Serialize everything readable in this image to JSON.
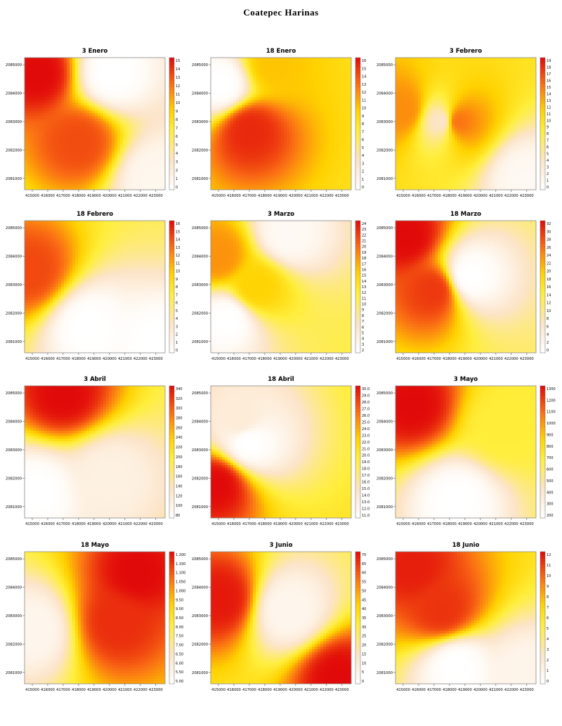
{
  "title": "Coatepec Harinas",
  "chart_data": [
    {
      "type": "heatmap",
      "title": "3 Enero",
      "x_ticks": [
        "415000",
        "416000",
        "417000",
        "418000",
        "419000",
        "420000",
        "421000",
        "422000",
        "423000"
      ],
      "y_ticks": [
        "2085000",
        "2084000",
        "2083000",
        "2082000",
        "2081000"
      ],
      "colorbar": [
        "15",
        "14",
        "13",
        "12",
        "11",
        "10",
        "9",
        "8",
        "7",
        "6",
        "5",
        "4",
        "3",
        "2",
        "1",
        "0"
      ],
      "vmin": 0,
      "vmax": 15,
      "base": 5,
      "hotspots": [
        {
          "x": 415400,
          "y": 2084700,
          "v": 15
        },
        {
          "x": 418000,
          "y": 2082300,
          "v": 13
        },
        {
          "x": 420200,
          "y": 2084700,
          "v": 0
        },
        {
          "x": 423000,
          "y": 2081000,
          "v": 1
        }
      ]
    },
    {
      "type": "heatmap",
      "title": "18 Enero",
      "x_ticks": [
        "415000",
        "416000",
        "417000",
        "418000",
        "419000",
        "420000",
        "421000",
        "422000",
        "423000"
      ],
      "y_ticks": [
        "2085000",
        "2084000",
        "2083000",
        "2082000",
        "2081000"
      ],
      "colorbar": [
        "16",
        "15",
        "14",
        "13",
        "12",
        "11",
        "10",
        "9",
        "8",
        "7",
        "6",
        "5",
        "4",
        "3",
        "2",
        "1",
        "0"
      ],
      "vmin": 0,
      "vmax": 16,
      "base": 8,
      "hotspots": [
        {
          "x": 417000,
          "y": 2082700,
          "v": 15
        },
        {
          "x": 415200,
          "y": 2084300,
          "v": 0
        },
        {
          "x": 418500,
          "y": 2085000,
          "v": 10
        }
      ]
    },
    {
      "type": "heatmap",
      "title": "3 Febrero",
      "x_ticks": [
        "415000",
        "416000",
        "417000",
        "418000",
        "419000",
        "420000",
        "421000",
        "422000",
        "423000"
      ],
      "y_ticks": [
        "2085000",
        "2084000",
        "2083000",
        "2082000",
        "2081000"
      ],
      "colorbar": [
        "19",
        "18",
        "17",
        "16",
        "15",
        "14",
        "13",
        "12",
        "11",
        "10",
        "9",
        "8",
        "7",
        "6",
        "5",
        "4",
        "3",
        "2",
        "1",
        "0"
      ],
      "vmin": 0,
      "vmax": 19,
      "base": 10,
      "hotspots": [
        {
          "x": 417500,
          "y": 2083000,
          "v": 4
        },
        {
          "x": 418500,
          "y": 2083000,
          "v": 15
        },
        {
          "x": 423000,
          "y": 2081000,
          "v": 1
        },
        {
          "x": 415000,
          "y": 2083400,
          "v": 14
        }
      ]
    },
    {
      "type": "heatmap",
      "title": "18 Febrero",
      "x_ticks": [
        "415000",
        "416000",
        "417000",
        "418000",
        "419000",
        "420000",
        "421000",
        "422000",
        "423000"
      ],
      "y_ticks": [
        "2085000",
        "2084000",
        "2083000",
        "2082000",
        "2081000"
      ],
      "colorbar": [
        "16",
        "15",
        "14",
        "13",
        "12",
        "11",
        "10",
        "9",
        "8",
        "7",
        "6",
        "5",
        "4",
        "3",
        "2",
        "1",
        "0"
      ],
      "vmin": 0,
      "vmax": 16,
      "base": 7,
      "hotspots": [
        {
          "x": 418700,
          "y": 2081500,
          "v": 0
        },
        {
          "x": 414800,
          "y": 2083500,
          "v": 14
        },
        {
          "x": 423000,
          "y": 2081000,
          "v": 0
        }
      ]
    },
    {
      "type": "heatmap",
      "title": "3 Marzo",
      "x_ticks": [
        "415000",
        "416000",
        "417000",
        "418000",
        "419000",
        "420000",
        "421000",
        "422000",
        "423000"
      ],
      "y_ticks": [
        "2085000",
        "2084000",
        "2083000",
        "2082000",
        "2081000"
      ],
      "colorbar": [
        "24",
        "23",
        "22",
        "21",
        "20",
        "19",
        "18",
        "17",
        "16",
        "15",
        "14",
        "13",
        "12",
        "11",
        "10",
        "9",
        "8",
        "7",
        "6",
        "5",
        "4",
        "3",
        "2"
      ],
      "vmin": 2,
      "vmax": 24,
      "base": 12,
      "hotspots": [
        {
          "x": 415600,
          "y": 2081800,
          "v": 2
        },
        {
          "x": 419500,
          "y": 2084800,
          "v": 3
        },
        {
          "x": 415000,
          "y": 2084000,
          "v": 18
        },
        {
          "x": 417400,
          "y": 2082900,
          "v": 15
        }
      ]
    },
    {
      "type": "heatmap",
      "title": "18 Marzo",
      "x_ticks": [
        "415000",
        "416000",
        "417000",
        "418000",
        "419000",
        "420000",
        "421000",
        "422000",
        "423000"
      ],
      "y_ticks": [
        "2085000",
        "2084000",
        "2083000",
        "2082000",
        "2081000"
      ],
      "colorbar": [
        "32",
        "30",
        "28",
        "26",
        "24",
        "22",
        "20",
        "18",
        "16",
        "14",
        "12",
        "10",
        "8",
        "6",
        "4",
        "2",
        "0"
      ],
      "vmin": 0,
      "vmax": 32,
      "base": 12,
      "hotspots": [
        {
          "x": 415200,
          "y": 2084700,
          "v": 32
        },
        {
          "x": 417000,
          "y": 2082800,
          "v": 29
        },
        {
          "x": 419300,
          "y": 2083300,
          "v": 0
        }
      ]
    },
    {
      "type": "heatmap",
      "title": "3 Abril",
      "x_ticks": [
        "415000",
        "416000",
        "417000",
        "418000",
        "419000",
        "420000",
        "421000",
        "422000",
        "423000"
      ],
      "y_ticks": [
        "2085000",
        "2084000",
        "2083000",
        "2082000",
        "2081000"
      ],
      "colorbar": [
        "340",
        "320",
        "300",
        "280",
        "260",
        "240",
        "220",
        "200",
        "180",
        "160",
        "140",
        "120",
        "100",
        "80"
      ],
      "vmin": 80,
      "vmax": 340,
      "base": 180,
      "hotspots": [
        {
          "x": 417000,
          "y": 2085000,
          "v": 340
        },
        {
          "x": 415300,
          "y": 2081500,
          "v": 80
        },
        {
          "x": 420000,
          "y": 2082000,
          "v": 110
        }
      ]
    },
    {
      "type": "heatmap",
      "title": "18 Abril",
      "x_ticks": [
        "415000",
        "416000",
        "417000",
        "418000",
        "419000",
        "420000",
        "421000",
        "422000",
        "423000"
      ],
      "y_ticks": [
        "2085000",
        "2084000",
        "2083000",
        "2082000",
        "2081000"
      ],
      "colorbar": [
        "30.0",
        "29.0",
        "28.0",
        "27.0",
        "26.0",
        "25.0",
        "24.0",
        "23.0",
        "22.0",
        "21.0",
        "20.0",
        "19.0",
        "18.0",
        "17.0",
        "16.0",
        "15.0",
        "14.0",
        "13.0",
        "12.0",
        "11.0"
      ],
      "vmin": 11,
      "vmax": 30,
      "base": 21,
      "hotspots": [
        {
          "x": 414900,
          "y": 2081800,
          "v": 30
        },
        {
          "x": 417000,
          "y": 2083300,
          "v": 11
        },
        {
          "x": 416500,
          "y": 2084000,
          "v": 14
        }
      ]
    },
    {
      "type": "heatmap",
      "title": "3 Mayo",
      "x_ticks": [
        "415000",
        "416000",
        "417000",
        "418000",
        "419000",
        "420000",
        "421000",
        "422000",
        "423000"
      ],
      "y_ticks": [
        "2085000",
        "2084000",
        "2083000",
        "2082000",
        "2081000"
      ],
      "colorbar": [
        "1300",
        "1200",
        "1100",
        "1000",
        "900",
        "800",
        "700",
        "600",
        "500",
        "400",
        "300",
        "200"
      ],
      "vmin": 200,
      "vmax": 1300,
      "base": 700,
      "hotspots": [
        {
          "x": 415600,
          "y": 2084600,
          "v": 1300
        },
        {
          "x": 418500,
          "y": 2081200,
          "v": 200
        },
        {
          "x": 421500,
          "y": 2083800,
          "v": 700
        }
      ]
    },
    {
      "type": "heatmap",
      "title": "18 Mayo",
      "x_ticks": [
        "415000",
        "416000",
        "417000",
        "418000",
        "419000",
        "420000",
        "421000",
        "422000",
        "423000"
      ],
      "y_ticks": [
        "2085000",
        "2084000",
        "2083000",
        "2082000",
        "2081000"
      ],
      "colorbar": [
        "1.200",
        "1.150",
        "1.100",
        "1.050",
        "1.000",
        "9.50",
        "9.00",
        "8.50",
        "8.00",
        "7.50",
        "7.00",
        "6.50",
        "6.00",
        "5.50",
        "5.00"
      ],
      "vmin": 5.0,
      "vmax": 12.0,
      "base": 8.5,
      "hotspots": [
        {
          "x": 421800,
          "y": 2084500,
          "v": 12
        },
        {
          "x": 420500,
          "y": 2082800,
          "v": 11.5
        },
        {
          "x": 415000,
          "y": 2082500,
          "v": 5.5
        }
      ]
    },
    {
      "type": "heatmap",
      "title": "3 Junio",
      "x_ticks": [
        "415000",
        "416000",
        "417000",
        "418000",
        "419000",
        "420000",
        "421000",
        "422000",
        "423000"
      ],
      "y_ticks": [
        "2085000",
        "2084000",
        "2083000",
        "2082000",
        "2081000"
      ],
      "colorbar": [
        "70",
        "65",
        "60",
        "55",
        "50",
        "45",
        "40",
        "35",
        "30",
        "25",
        "20",
        "15",
        "10",
        "5",
        "0"
      ],
      "vmin": 0,
      "vmax": 70,
      "base": 30,
      "hotspots": [
        {
          "x": 415200,
          "y": 2083600,
          "v": 68
        },
        {
          "x": 422800,
          "y": 2080800,
          "v": 70
        },
        {
          "x": 419500,
          "y": 2083200,
          "v": 5
        }
      ]
    },
    {
      "type": "heatmap",
      "title": "18 Junio",
      "x_ticks": [
        "415000",
        "416000",
        "417000",
        "418000",
        "419000",
        "420000",
        "421000",
        "422000",
        "423000"
      ],
      "y_ticks": [
        "2085000",
        "2084000",
        "2083000",
        "2082000",
        "2081000"
      ],
      "colorbar": [
        "12",
        "11",
        "10",
        "9",
        "8",
        "7",
        "6",
        "5",
        "4",
        "3",
        "2",
        "1",
        "0"
      ],
      "vmin": 0,
      "vmax": 12,
      "base": 6,
      "hotspots": [
        {
          "x": 415600,
          "y": 2084700,
          "v": 11.5
        },
        {
          "x": 417500,
          "y": 2083200,
          "v": 11
        },
        {
          "x": 418500,
          "y": 2081200,
          "v": 0
        },
        {
          "x": 423000,
          "y": 2081000,
          "v": 1
        }
      ]
    }
  ]
}
